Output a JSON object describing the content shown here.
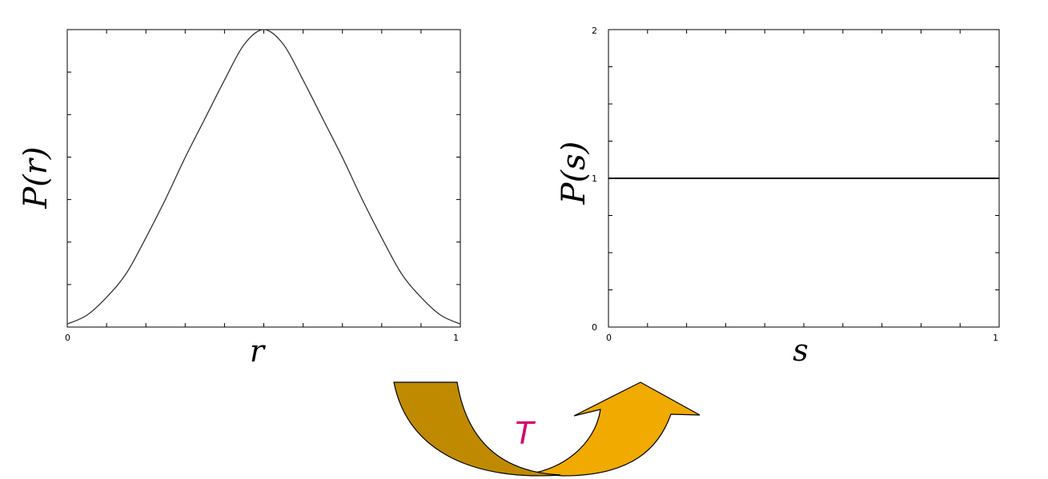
{
  "chart_data": [
    {
      "type": "line",
      "xlabel": "r",
      "ylabel": "P(r)",
      "xlim": [
        0,
        1
      ],
      "ylim": [
        0,
        1
      ],
      "x_tick_labels": [
        "0",
        "1"
      ],
      "y_tick_labels": [],
      "series": [
        {
          "x": [
            0,
            0.05,
            0.1,
            0.15,
            0.2,
            0.25,
            0.3,
            0.35,
            0.4,
            0.45,
            0.5,
            0.55,
            0.6,
            0.65,
            0.7,
            0.75,
            0.8,
            0.85,
            0.9,
            0.95,
            1
          ],
          "y": [
            0.01,
            0.04,
            0.1,
            0.18,
            0.3,
            0.43,
            0.57,
            0.7,
            0.83,
            0.95,
            1.0,
            0.95,
            0.83,
            0.7,
            0.57,
            0.43,
            0.3,
            0.18,
            0.1,
            0.04,
            0.01
          ]
        }
      ],
      "grid": false
    },
    {
      "type": "line",
      "xlabel": "s",
      "ylabel": "P(s)",
      "xlim": [
        0,
        1
      ],
      "ylim": [
        0,
        2
      ],
      "x_tick_labels": [
        "0",
        "1"
      ],
      "y_tick_labels": [
        "0",
        "1",
        "2"
      ],
      "series": [
        {
          "x": [
            0,
            1
          ],
          "y": [
            1,
            1
          ]
        }
      ],
      "grid": false
    }
  ],
  "transform": {
    "label": "T",
    "colors": {
      "arrow_dark": "#c08a00",
      "arrow_light": "#f0aa00",
      "label": "#d4006e"
    }
  }
}
